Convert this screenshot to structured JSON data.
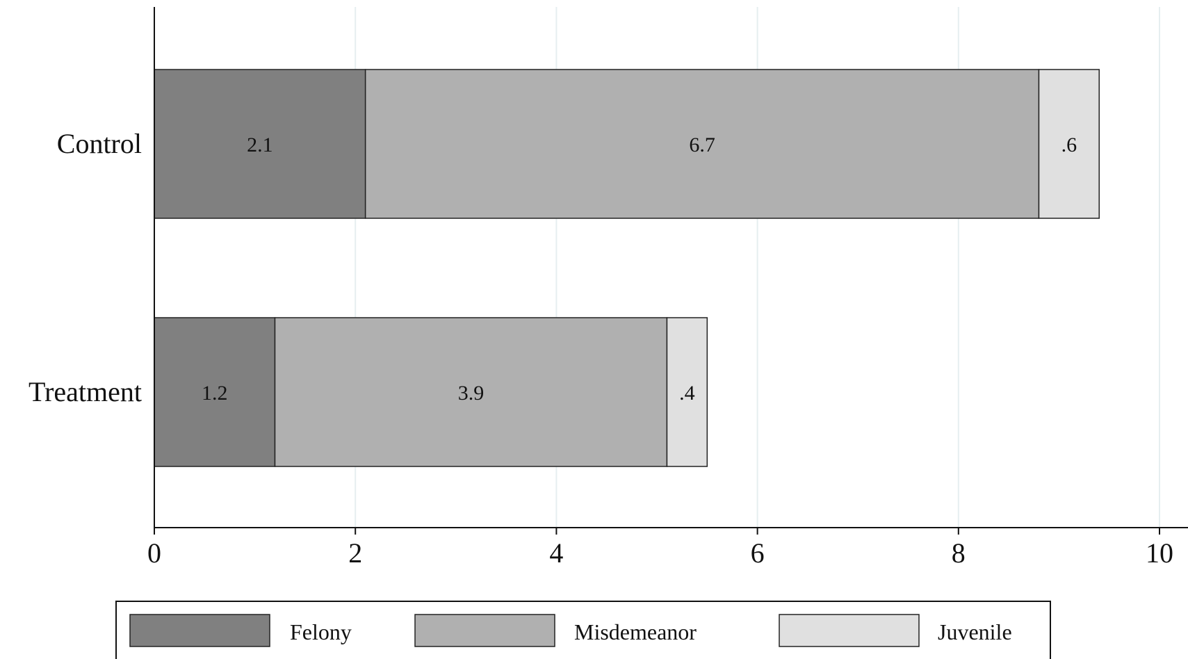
{
  "chart_data": {
    "type": "bar",
    "orientation": "horizontal",
    "stacked": true,
    "categories": [
      "Control",
      "Treatment"
    ],
    "series": [
      {
        "name": "Felony",
        "values": [
          2.1,
          1.2
        ],
        "labels": [
          "2.1",
          "1.2"
        ],
        "color": "#808080"
      },
      {
        "name": "Misdemeanor",
        "values": [
          6.7,
          3.9
        ],
        "labels": [
          "6.7",
          "3.9"
        ],
        "color": "#b0b0b0"
      },
      {
        "name": "Juvenile",
        "values": [
          0.6,
          0.4
        ],
        "labels": [
          ".6",
          ".4"
        ],
        "color": "#e0e0e0"
      }
    ],
    "xlim": [
      0,
      10
    ],
    "xticks": [
      0,
      2,
      4,
      6,
      8,
      10
    ],
    "title": "",
    "xlabel": "",
    "ylabel": "",
    "grid": true,
    "grid_color": "#e6eef0",
    "legend_position": "bottom"
  }
}
